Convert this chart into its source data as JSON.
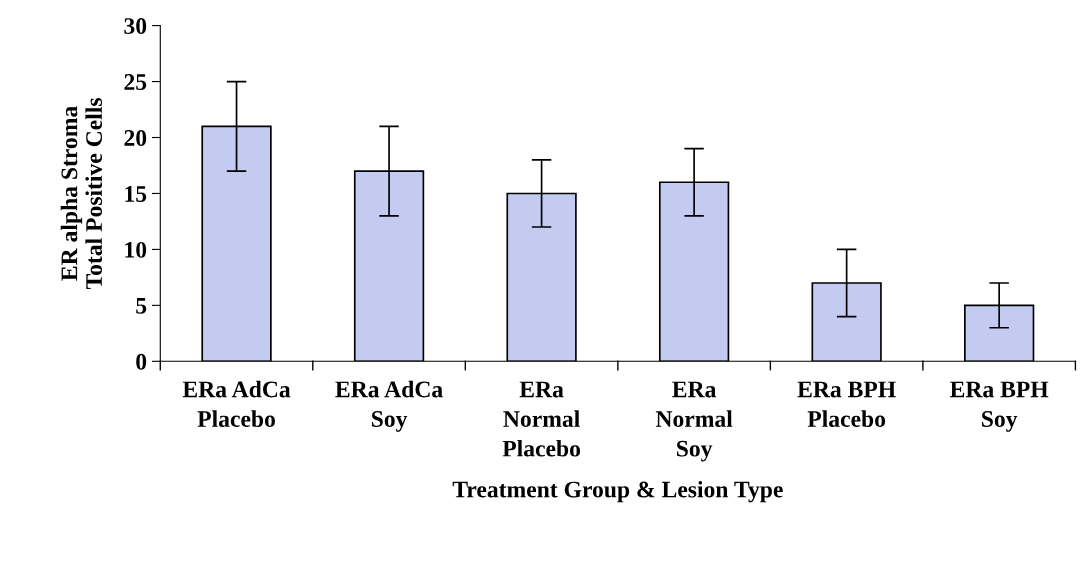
{
  "chart_data": {
    "type": "bar",
    "xlabel": "Treatment Group & Lesion Type",
    "ylabel": "ER alpha Stroma\nTotal Positive Cells",
    "categories": [
      "ERa AdCa\nPlacebo",
      "ERa AdCa\nSoy",
      "ERa\nNormal\nPlacebo",
      "ERa\nNormal\nSoy",
      "ERa BPH\nPlacebo",
      "ERa BPH\nSoy"
    ],
    "values": [
      21,
      17,
      15,
      16,
      7,
      5
    ],
    "errors": [
      4,
      4,
      3,
      3,
      3,
      2
    ],
    "color": "#c3cbf0",
    "ylim": [
      0,
      30
    ],
    "yticks": [
      0,
      5,
      10,
      15,
      20,
      25,
      30
    ],
    "grid": false,
    "legend": false
  }
}
